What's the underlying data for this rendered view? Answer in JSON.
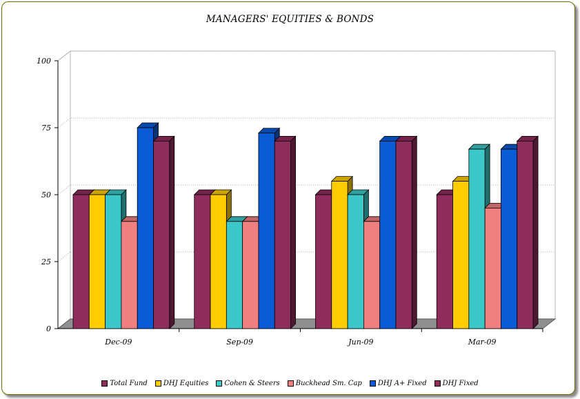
{
  "chart_data": {
    "type": "bar",
    "title": "MANAGERS' EQUITIES & BONDS",
    "categories": [
      "Dec-09",
      "Sep-09",
      "Jun-09",
      "Mar-09"
    ],
    "series": [
      {
        "name": "Total Fund",
        "color": "#8e2c5c",
        "values": [
          50,
          50,
          50,
          50
        ]
      },
      {
        "name": "DHJ Equities",
        "color": "#ffcc00",
        "values": [
          50,
          50,
          55,
          55
        ]
      },
      {
        "name": "Cohen & Steers",
        "color": "#3cc8c8",
        "values": [
          50,
          40,
          50,
          67
        ]
      },
      {
        "name": "Buckhead Sm. Cap",
        "color": "#f08080",
        "values": [
          40,
          40,
          40,
          45
        ]
      },
      {
        "name": "DHJ A+ Fixed",
        "color": "#0a5cd6",
        "values": [
          75,
          73,
          70,
          67
        ]
      },
      {
        "name": "DHJ Fixed",
        "color": "#8e2c5c",
        "values": [
          70,
          70,
          70,
          70
        ]
      }
    ],
    "yticks": [
      "0",
      "25",
      "50",
      "75",
      "100"
    ],
    "ylim": [
      0,
      100
    ],
    "grid": true,
    "legend": "bottom"
  }
}
